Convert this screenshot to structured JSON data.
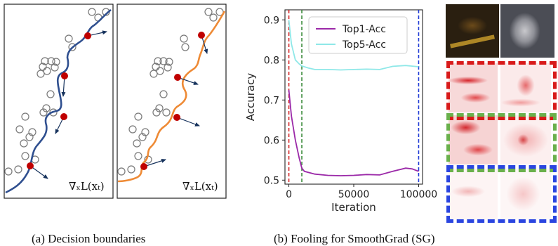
{
  "panel_a": {
    "gradient_label": "∇ₓL(xₜ)",
    "caption": "(a)  Decision boundaries",
    "colors": {
      "boundary_left": "#2f4f8f",
      "boundary_right": "#ee8a35",
      "point": "#c00000",
      "arrow": "#16325c",
      "circle": "#777777"
    }
  },
  "panel_b": {
    "caption": "(b)  Fooling for SmoothGrad (SG)",
    "chart_data": {
      "type": "line",
      "xlabel": "Iteration",
      "ylabel": "Accuracy",
      "xlim": [
        -3000,
        103000
      ],
      "ylim": [
        0.49,
        0.925
      ],
      "xticks": [
        0,
        50000,
        100000
      ],
      "xtick_labels": [
        "0",
        "50000",
        "100000"
      ],
      "yticks": [
        0.5,
        0.6,
        0.7,
        0.8,
        0.9
      ],
      "ytick_labels": [
        "0.5",
        "0.6",
        "0.7",
        "0.8",
        "0.9"
      ],
      "legend_position": "top-center",
      "series": [
        {
          "name": "Top1-Acc",
          "color": "#9b29a8",
          "x": [
            0,
            2000,
            5000,
            8000,
            10000,
            12000,
            20000,
            30000,
            40000,
            50000,
            60000,
            70000,
            80000,
            90000,
            95000,
            100000
          ],
          "y": [
            0.725,
            0.66,
            0.6,
            0.555,
            0.53,
            0.522,
            0.515,
            0.512,
            0.511,
            0.512,
            0.514,
            0.513,
            0.522,
            0.53,
            0.528,
            0.522
          ]
        },
        {
          "name": "Top5-Acc",
          "color": "#8fe8e8",
          "x": [
            0,
            2000,
            5000,
            8000,
            10000,
            15000,
            20000,
            30000,
            40000,
            50000,
            60000,
            70000,
            80000,
            90000,
            100000
          ],
          "y": [
            0.9,
            0.84,
            0.8,
            0.79,
            0.785,
            0.78,
            0.776,
            0.776,
            0.775,
            0.776,
            0.777,
            0.776,
            0.784,
            0.786,
            0.783
          ]
        }
      ],
      "vlines": [
        {
          "x": 0,
          "color": "#d62728"
        },
        {
          "x": 10000,
          "color": "#3a8a3a"
        },
        {
          "x": 100000,
          "color": "#1f3ad6"
        }
      ]
    },
    "image_grid": {
      "border_colors": [
        "#d81a1a",
        "#6ab04c",
        "#2a45e0"
      ]
    }
  }
}
